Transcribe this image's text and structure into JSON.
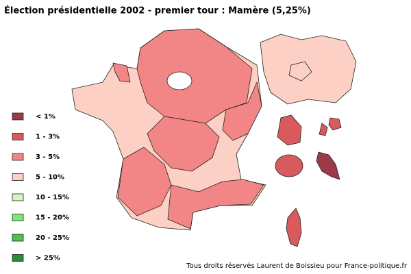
{
  "title": "Élection présidentielle 2002 - premier tour : Mamère (5,25%)",
  "legend": [
    {
      "label": "< 1%",
      "color": "#9e3a48"
    },
    {
      "label": "1 - 3%",
      "color": "#d95a5e"
    },
    {
      "label": "3 - 5%",
      "color": "#f28585"
    },
    {
      "label": "5 - 10%",
      "color": "#fcd0c4"
    },
    {
      "label": "10 - 15%",
      "color": "#d4f5c0"
    },
    {
      "label": "15 - 20%",
      "color": "#7ee87a"
    },
    {
      "label": "20 - 25%",
      "color": "#4cc44c"
    },
    {
      "label": "> 25%",
      "color": "#2e8b3a"
    }
  ],
  "credit": "Tous droits réservés Laurent de Boissieu pour France-politique.fr"
}
